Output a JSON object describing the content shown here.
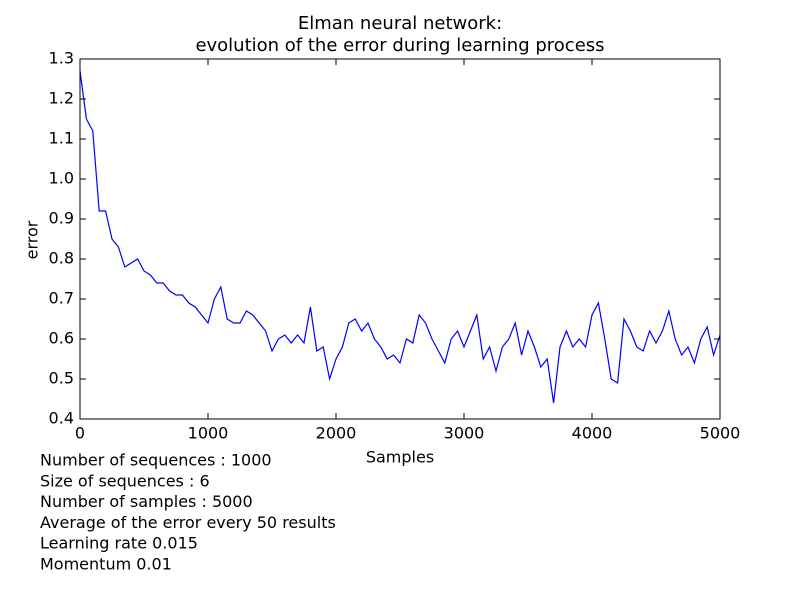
{
  "chart_data": {
    "type": "line",
    "title": [
      "Elman neural network:",
      "evolution of the error during learning process"
    ],
    "xlabel": "Samples",
    "ylabel": "error",
    "annotations": [
      "Number of sequences : 1000",
      "Size of sequences : 6",
      "Number of samples : 5000",
      "Average of the error every 50 results",
      "Learning rate 0.015",
      "Momentum 0.01"
    ],
    "xlim": [
      0,
      5000
    ],
    "xticks": [
      0,
      1000,
      2000,
      3000,
      4000,
      5000
    ],
    "ylim": [
      0.4,
      1.3
    ],
    "yticks": [
      0.4,
      0.5,
      0.6,
      0.7,
      0.8,
      0.9,
      {
        "value": 1,
        "label": "1.0"
      },
      1.1,
      1.2,
      1.3
    ],
    "grid": false,
    "x": [
      0,
      50,
      100,
      150,
      200,
      250,
      300,
      350,
      400,
      450,
      500,
      550,
      600,
      650,
      700,
      750,
      800,
      850,
      900,
      950,
      1000,
      1050,
      1100,
      1150,
      1200,
      1250,
      1300,
      1350,
      1400,
      1450,
      1500,
      1550,
      1600,
      1650,
      1700,
      1750,
      1800,
      1850,
      1900,
      1950,
      2000,
      2050,
      2100,
      2150,
      2200,
      2250,
      2300,
      2350,
      2400,
      2450,
      2500,
      2550,
      2600,
      2650,
      2700,
      2750,
      2800,
      2850,
      2900,
      2950,
      3000,
      3050,
      3100,
      3150,
      3200,
      3250,
      3300,
      3350,
      3400,
      3450,
      3500,
      3550,
      3600,
      3650,
      3700,
      3750,
      3800,
      3850,
      3900,
      3950,
      4000,
      4050,
      4100,
      4150,
      4200,
      4250,
      4300,
      4350,
      4400,
      4450,
      4500,
      4550,
      4600,
      4650,
      4700,
      4750,
      4800,
      4850,
      4900,
      4950,
      5000
    ],
    "series": [
      {
        "name": "error",
        "color": "#0000ff",
        "values": [
          1.27,
          1.15,
          1.12,
          0.92,
          0.92,
          0.85,
          0.83,
          0.78,
          0.79,
          0.8,
          0.77,
          0.76,
          0.74,
          0.74,
          0.72,
          0.71,
          0.71,
          0.69,
          0.68,
          0.66,
          0.64,
          0.7,
          0.73,
          0.65,
          0.64,
          0.64,
          0.67,
          0.66,
          0.64,
          0.62,
          0.57,
          0.6,
          0.61,
          0.59,
          0.61,
          0.59,
          0.68,
          0.57,
          0.58,
          0.5,
          0.55,
          0.58,
          0.64,
          0.65,
          0.62,
          0.64,
          0.6,
          0.58,
          0.55,
          0.56,
          0.54,
          0.6,
          0.59,
          0.66,
          0.64,
          0.6,
          0.57,
          0.54,
          0.6,
          0.62,
          0.58,
          0.62,
          0.66,
          0.55,
          0.58,
          0.52,
          0.58,
          0.6,
          0.64,
          0.56,
          0.62,
          0.58,
          0.53,
          0.55,
          0.44,
          0.58,
          0.62,
          0.58,
          0.6,
          0.58,
          0.66,
          0.69,
          0.6,
          0.5,
          0.49,
          0.65,
          0.62,
          0.58,
          0.57,
          0.62,
          0.59,
          0.62,
          0.67,
          0.6,
          0.56,
          0.58,
          0.54,
          0.6,
          0.63,
          0.56,
          0.61
        ]
      }
    ]
  }
}
